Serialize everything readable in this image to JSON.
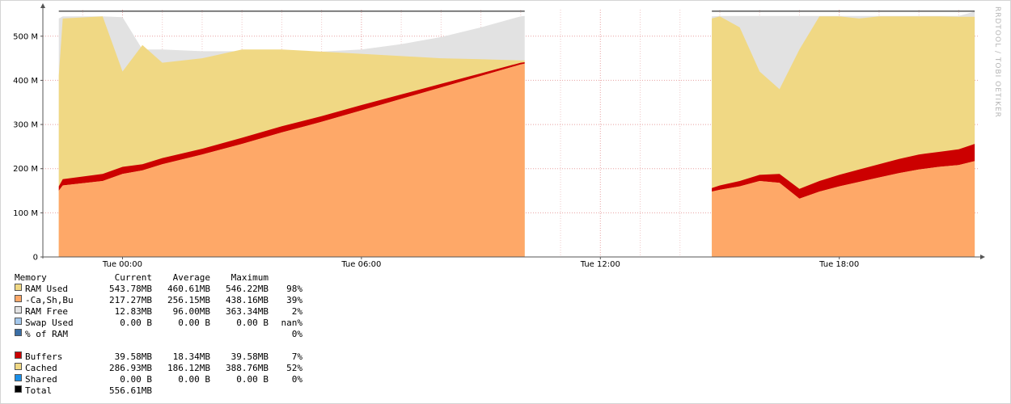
{
  "side_label": "RRDTOOL / TOBI OETIKER",
  "legend": {
    "header": {
      "label": "Memory",
      "current": "Current",
      "average": "Average",
      "maximum": "Maximum"
    },
    "group1": [
      {
        "label": "RAM Used",
        "current": "543.78MB",
        "average": "460.61MB",
        "maximum": "546.22MB",
        "pct": "98%",
        "color": "#f0d884"
      },
      {
        "label": "-Ca,Sh,Bu",
        "current": "217.27MB",
        "average": "256.15MB",
        "maximum": "438.16MB",
        "pct": "39%",
        "color": "#fea868"
      },
      {
        "label": "RAM Free",
        "current": "12.83MB",
        "average": "96.00MB",
        "maximum": "363.34MB",
        "pct": "2%",
        "color": "#e2e2e2"
      },
      {
        "label": "Swap Used",
        "current": "0.00 B",
        "average": "0.00 B",
        "maximum": "0.00 B",
        "pct": "nan%",
        "color": "#a4c8ec"
      },
      {
        "label": "% of RAM",
        "current": "",
        "average": "",
        "maximum": "",
        "pct": "0%",
        "color": "#3a6ea5"
      }
    ],
    "group2": [
      {
        "label": "Buffers",
        "current": "39.58MB",
        "average": "18.34MB",
        "maximum": "39.58MB",
        "pct": "7%",
        "color": "#cc0000"
      },
      {
        "label": "Cached",
        "current": "286.93MB",
        "average": "186.12MB",
        "maximum": "388.76MB",
        "pct": "52%",
        "color": "#f0d884"
      },
      {
        "label": "Shared",
        "current": "0.00 B",
        "average": "0.00 B",
        "maximum": "0.00 B",
        "pct": "0%",
        "color": "#1a8fe8"
      },
      {
        "label": "Total",
        "current": "556.61MB",
        "average": "",
        "maximum": "",
        "pct": "",
        "color": "#000000"
      }
    ]
  },
  "chart_data": {
    "type": "area",
    "x_unit": "hours since Tue 00:00",
    "xlim": [
      -2.0,
      21.5
    ],
    "ylim": [
      0,
      560
    ],
    "y_ticks": [
      0,
      100,
      200,
      300,
      400,
      500
    ],
    "y_tick_labels": [
      "0",
      "100 M",
      "200 M",
      "300 M",
      "400 M",
      "500 M"
    ],
    "x_ticks": [
      0,
      6,
      12,
      18
    ],
    "x_tick_labels": [
      "Tue 00:00",
      "Tue 06:00",
      "Tue 12:00",
      "Tue 18:00"
    ],
    "grid": true,
    "total_line": 556.61,
    "segments": [
      {
        "x": [
          -1.6,
          -1.5,
          -0.5,
          0.0,
          0.5,
          1.0,
          2.0,
          3.0,
          4.0,
          5.0,
          6.0,
          7.0,
          8.0,
          9.0,
          10.0,
          10.1
        ],
        "cached_minus": [
          150,
          162,
          172,
          188,
          196,
          210,
          232,
          256,
          282,
          306,
          332,
          358,
          384,
          410,
          436,
          438
        ],
        "buffers": [
          10,
          14,
          16,
          16,
          14,
          14,
          13,
          14,
          14,
          13,
          12,
          10,
          8,
          6,
          4,
          3
        ],
        "ram_used": [
          410,
          540,
          545,
          420,
          480,
          440,
          450,
          470,
          470,
          465,
          460,
          455,
          450,
          448,
          445,
          445
        ],
        "ram_free_top": [
          540,
          545,
          545,
          543,
          470,
          470,
          466,
          466,
          465,
          465,
          470,
          482,
          498,
          520,
          545,
          546
        ]
      },
      {
        "x": [
          14.8,
          15.0,
          15.5,
          16.0,
          16.5,
          17.0,
          17.5,
          18.0,
          18.5,
          19.0,
          19.5,
          20.0,
          20.5,
          21.0,
          21.4
        ],
        "cached_minus": [
          148,
          152,
          160,
          172,
          168,
          132,
          148,
          160,
          170,
          180,
          190,
          198,
          204,
          208,
          217
        ],
        "buffers": [
          8,
          10,
          12,
          14,
          20,
          22,
          24,
          26,
          28,
          30,
          32,
          34,
          34,
          36,
          39
        ],
        "ram_used": [
          540,
          545,
          520,
          420,
          380,
          470,
          545,
          545,
          540,
          545,
          545,
          545,
          545,
          544,
          544
        ],
        "ram_free_top": [
          545,
          546,
          546,
          546,
          546,
          546,
          546,
          546,
          546,
          546,
          546,
          546,
          546,
          546,
          556
        ]
      }
    ]
  }
}
